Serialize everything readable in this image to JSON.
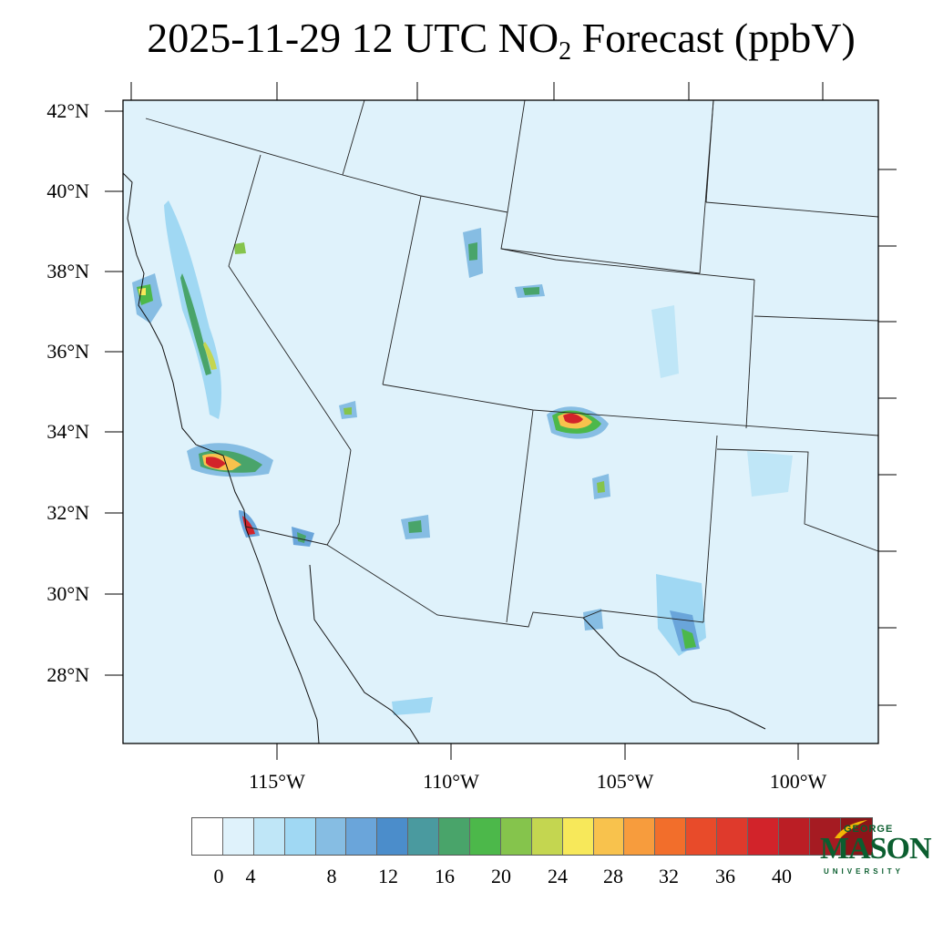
{
  "title": {
    "main": "2025-11-29 12 UTC NO",
    "subscript": "2",
    "rest": " Forecast (ppbV)"
  },
  "map": {
    "background_color": "#dff2fb",
    "lat_labels": [
      "42°N",
      "40°N",
      "38°N",
      "36°N",
      "34°N",
      "32°N",
      "30°N",
      "28°N"
    ],
    "lon_labels": [
      "115°W",
      "110°W",
      "105°W",
      "100°W"
    ]
  },
  "colorbar": {
    "levels": [
      "0",
      "4",
      "8",
      "12",
      "16",
      "20",
      "24",
      "28",
      "32",
      "36",
      "40"
    ],
    "colors": [
      "#ffffff",
      "#dff2fb",
      "#bfe6f7",
      "#a0d8f3",
      "#86bde3",
      "#6aa5da",
      "#4b8dcb",
      "#4a9a9f",
      "#49a46a",
      "#4cb84a",
      "#85c44c",
      "#c4d650",
      "#f7e85a",
      "#f8c24d",
      "#f79c3d",
      "#f26e2b",
      "#e84b2a",
      "#df3a2c",
      "#d2232a",
      "#bb1e25",
      "#a51b22",
      "#8c1519"
    ]
  },
  "logo": {
    "line1": "GEORGE",
    "line2": "MASON",
    "line3": "UNIVERSITY"
  }
}
